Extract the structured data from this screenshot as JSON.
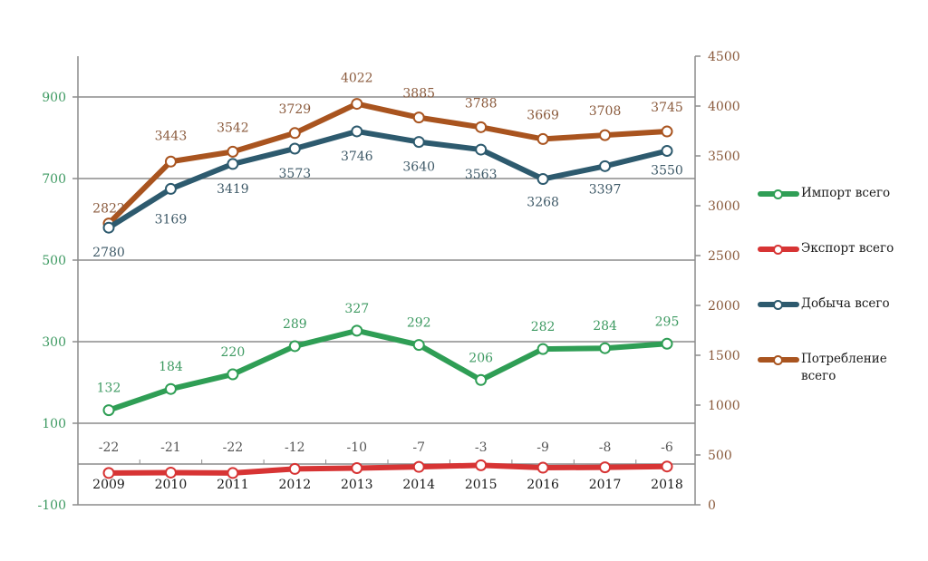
{
  "chart_data": {
    "type": "line",
    "title": "",
    "xlabel": "",
    "ylabel": "",
    "categories": [
      "2009",
      "2010",
      "2011",
      "2012",
      "2013",
      "2014",
      "2015",
      "2016",
      "2017",
      "2018"
    ],
    "axes": {
      "left": {
        "ylim": [
          -100,
          1000
        ],
        "ticks": [
          -100,
          100,
          300,
          500,
          700,
          900
        ],
        "color": "#3e9a62"
      },
      "right": {
        "ylim": [
          0,
          4500
        ],
        "ticks": [
          0,
          500,
          1000,
          1500,
          2000,
          2500,
          3000,
          3500,
          4000,
          4500
        ],
        "color": "#8a5a3c"
      }
    },
    "grid": true,
    "legend_position": "right",
    "series": [
      {
        "name": "Импорт всего",
        "axis": "left",
        "color": "#2f9e55",
        "label_color": "#3e9a62",
        "values": [
          132,
          184,
          220,
          289,
          327,
          292,
          206,
          282,
          284,
          295
        ]
      },
      {
        "name": "Экспорт всего",
        "axis": "left",
        "color": "#d73434",
        "label_color": "#555555",
        "values": [
          -22,
          -21,
          -22,
          -12,
          -10,
          -7,
          -3,
          -9,
          -8,
          -6
        ]
      },
      {
        "name": "Добыча всего",
        "axis": "right",
        "color": "#2d5a6e",
        "label_color": "#3f5a68",
        "values": [
          2780,
          3169,
          3419,
          3573,
          3746,
          3640,
          3563,
          3268,
          3397,
          3550
        ]
      },
      {
        "name": "Потребление всего",
        "axis": "right",
        "color": "#a9541f",
        "label_color": "#8a5a3c",
        "values": [
          2822,
          3443,
          3542,
          3729,
          4022,
          3885,
          3788,
          3669,
          3708,
          3745
        ]
      }
    ]
  },
  "legend": {
    "items": [
      {
        "label": "Импорт всего",
        "color": "#2f9e55"
      },
      {
        "label": "Экспорт всего",
        "color": "#d73434"
      },
      {
        "label": "Добыча всего",
        "color": "#2d5a6e"
      },
      {
        "label": "Потребление всего",
        "color": "#a9541f"
      }
    ]
  }
}
